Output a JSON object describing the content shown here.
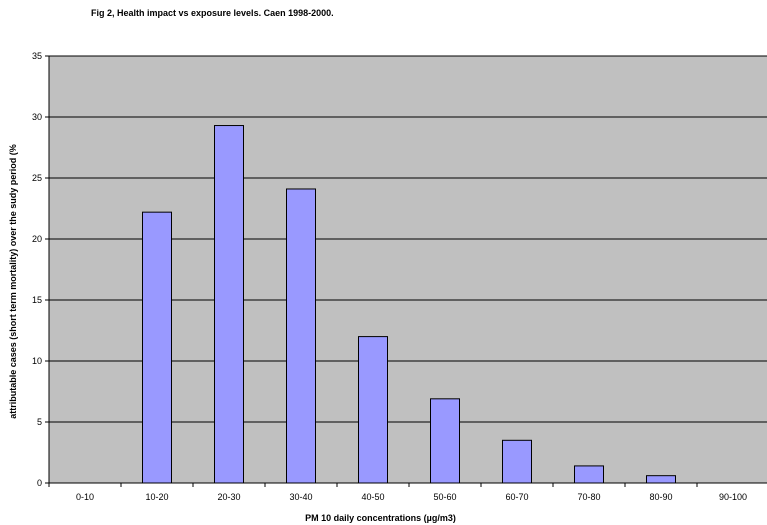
{
  "chart_data": {
    "type": "bar",
    "title": "Fig 2, Health impact vs exposure levels. Caen 1998-2000.",
    "xlabel": "PM 10 daily concentrations (µg/m3)",
    "ylabel": "attributable cases (short term mortality) over the sudy period (%",
    "categories": [
      "0-10",
      "10-20",
      "20-30",
      "30-40",
      "40-50",
      "50-60",
      "60-70",
      "70-80",
      "80-90",
      "90-100"
    ],
    "values": [
      0,
      22.2,
      29.3,
      24.1,
      12.0,
      6.9,
      3.5,
      1.4,
      0.6,
      0
    ],
    "ylim": [
      0,
      35
    ],
    "yticks": [
      0,
      5,
      10,
      15,
      20,
      25,
      30,
      35
    ],
    "grid": true,
    "legend": "none",
    "colors": {
      "plot_background": "#c0c0c0",
      "bar_fill": "#9999ff",
      "bar_stroke": "#000000",
      "gridline": "#000000"
    }
  }
}
